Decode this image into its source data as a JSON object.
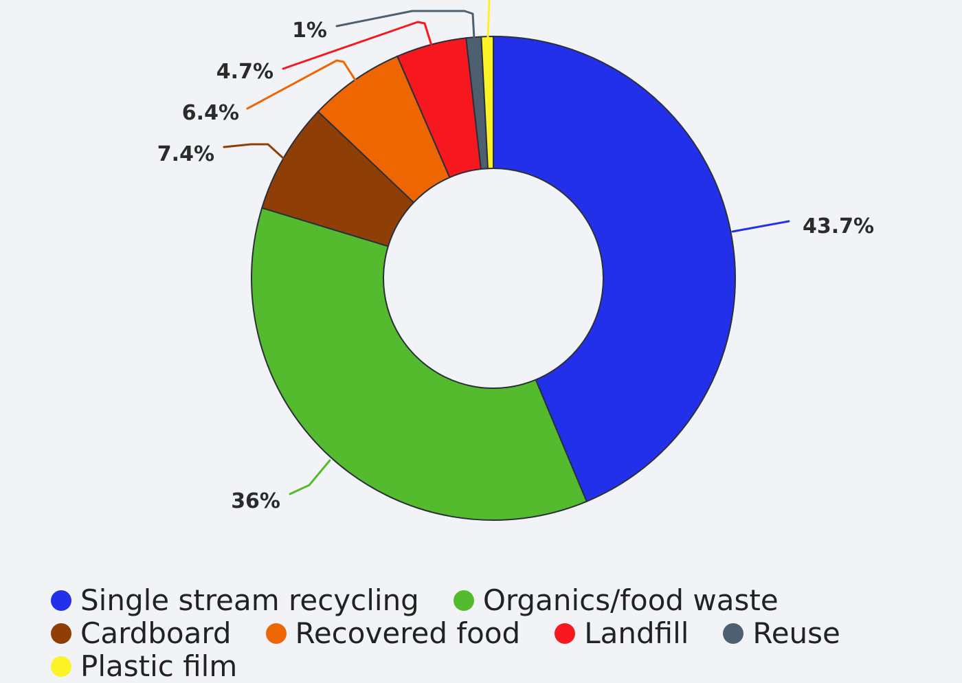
{
  "chart_data": {
    "type": "pie",
    "variant": "donut",
    "title": "",
    "slices": [
      {
        "label": "Single stream recycling",
        "value": 43.7,
        "value_label": "43.7%",
        "color": "#2330ea"
      },
      {
        "label": "Organics/food waste",
        "value": 36,
        "value_label": "36%",
        "color": "#55bb2e"
      },
      {
        "label": "Cardboard",
        "value": 7.4,
        "value_label": "7.4%",
        "color": "#8f3f06"
      },
      {
        "label": "Recovered food",
        "value": 6.4,
        "value_label": "6.4%",
        "color": "#ee6602"
      },
      {
        "label": "Landfill",
        "value": 4.7,
        "value_label": "4.7%",
        "color": "#f7171e"
      },
      {
        "label": "Reuse",
        "value": 1,
        "value_label": "1%",
        "color": "#4e5f70"
      },
      {
        "label": "Plastic film",
        "value": 0.8,
        "value_label": "",
        "color": "#fdf226"
      }
    ],
    "legend_position": "bottom"
  }
}
